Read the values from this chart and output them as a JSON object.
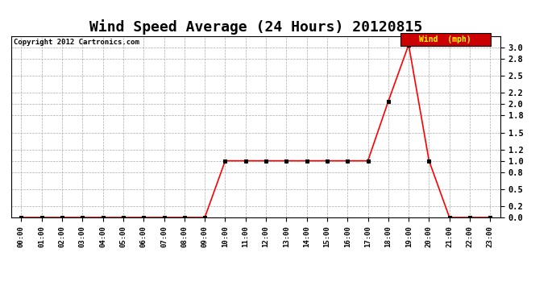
{
  "title": "Wind Speed Average (24 Hours) 20120815",
  "copyright": "Copyright 2012 Cartronics.com",
  "xlabel_ticks": [
    "00:00",
    "01:00",
    "02:00",
    "03:00",
    "04:00",
    "05:00",
    "06:00",
    "07:00",
    "08:00",
    "09:00",
    "10:00",
    "11:00",
    "12:00",
    "13:00",
    "14:00",
    "15:00",
    "16:00",
    "17:00",
    "18:00",
    "19:00",
    "20:00",
    "21:00",
    "22:00",
    "23:00"
  ],
  "x_values": [
    0,
    1,
    2,
    3,
    4,
    5,
    6,
    7,
    8,
    9,
    10,
    11,
    12,
    13,
    14,
    15,
    16,
    17,
    18,
    19,
    20,
    21,
    22,
    23
  ],
  "y_values": [
    0,
    0,
    0,
    0,
    0,
    0,
    0,
    0,
    0,
    0,
    1,
    1,
    1,
    1,
    1,
    1,
    1,
    1,
    2.05,
    3.05,
    1,
    0,
    0,
    0
  ],
  "line_color": "#ff0000",
  "marker_color": "#000000",
  "marker": "s",
  "marker_size": 2.5,
  "ylim": [
    0,
    3.2
  ],
  "yticks": [
    0.0,
    0.2,
    0.5,
    0.8,
    1.0,
    1.2,
    1.5,
    1.8,
    2.0,
    2.2,
    2.5,
    2.8,
    3.0
  ],
  "bg_color": "#ffffff",
  "grid_color": "#aaaaaa",
  "title_fontsize": 13,
  "legend_label": "Wind  (mph)",
  "legend_bg": "#cc0000",
  "legend_text_color": "#ffff00"
}
